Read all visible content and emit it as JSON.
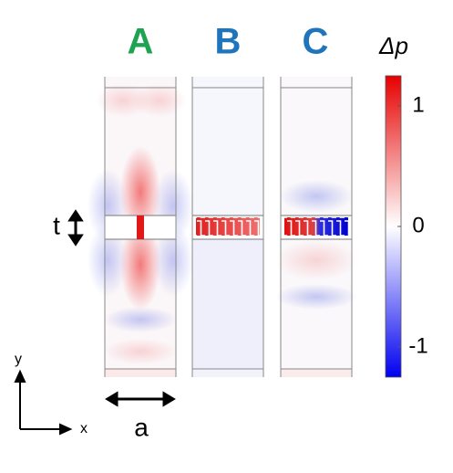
{
  "panels": [
    {
      "label": "A"
    },
    {
      "label": "B"
    },
    {
      "label": "C"
    }
  ],
  "dimensions": {
    "thickness": "t",
    "width": "a"
  },
  "axes": {
    "x": "x",
    "y": "y"
  },
  "colorbar": {
    "label": "Δp",
    "lim": [
      -1.25,
      1.25
    ],
    "ticks": [
      1,
      0,
      -1
    ]
  }
}
